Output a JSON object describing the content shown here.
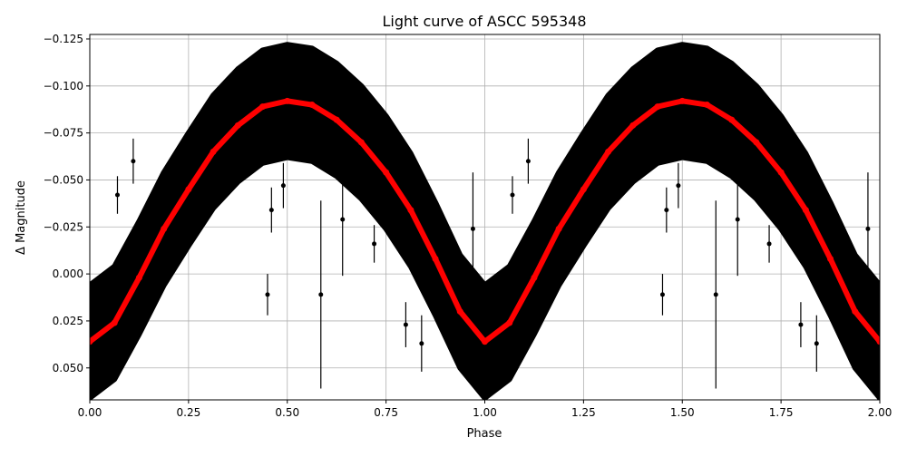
{
  "chart_data": {
    "type": "scatter",
    "title": "Light curve of ASCC 595348",
    "xlabel": "Phase",
    "ylabel": "Δ Magnitude",
    "xlim": [
      0,
      2
    ],
    "ylim": [
      0.067,
      -0.1274
    ],
    "y_inverted": true,
    "grid": true,
    "xticks": [
      0,
      0.25,
      0.5,
      0.75,
      1.0,
      1.25,
      1.5,
      1.75,
      2.0
    ],
    "xtick_labels": [
      "0.00",
      "0.25",
      "0.50",
      "0.75",
      "1.00",
      "1.25",
      "1.50",
      "1.75",
      "2.00"
    ],
    "yticks": [
      -0.125,
      -0.1,
      -0.075,
      -0.05,
      -0.025,
      0.0,
      0.025,
      0.05
    ],
    "ytick_labels": [
      "−0.125",
      "−0.100",
      "−0.075",
      "−0.050",
      "−0.025",
      "0.000",
      "0.025",
      "0.050"
    ],
    "colors": {
      "observations": "#000000",
      "binned": "#ff0000",
      "grid": "#b0b0b0"
    },
    "observation_scatter_halfwidth": 0.03,
    "series": [
      {
        "role": "binned",
        "x": [
          0,
          0.0625,
          0.125,
          0.1875,
          0.25,
          0.3125,
          0.375,
          0.4375,
          0.5,
          0.5625,
          0.625,
          0.6875,
          0.75,
          0.8125,
          0.875,
          0.9375,
          1.0,
          1.0625,
          1.125,
          1.1875,
          1.25,
          1.3125,
          1.375,
          1.4375,
          1.5,
          1.5625,
          1.625,
          1.6875,
          1.75,
          1.8125,
          1.875,
          1.9375,
          2.0
        ],
        "y": [
          0.036,
          0.026,
          0.002,
          -0.024,
          -0.045,
          -0.065,
          -0.079,
          -0.089,
          -0.092,
          -0.09,
          -0.082,
          -0.07,
          -0.054,
          -0.034,
          -0.008,
          0.02,
          0.036,
          0.026,
          0.002,
          -0.024,
          -0.045,
          -0.065,
          -0.079,
          -0.089,
          -0.092,
          -0.09,
          -0.082,
          -0.07,
          -0.054,
          -0.034,
          -0.008,
          0.02,
          0.036
        ]
      },
      {
        "role": "outliers",
        "x": [
          0.07,
          0.11,
          0.45,
          0.46,
          0.49,
          0.585,
          0.64,
          0.72,
          0.8,
          0.84,
          0.97,
          1.07,
          1.11,
          1.45,
          1.46,
          1.49,
          1.585,
          1.64,
          1.72,
          1.8,
          1.84,
          1.97
        ],
        "y": [
          -0.042,
          -0.06,
          0.011,
          -0.034,
          -0.047,
          0.011,
          -0.029,
          -0.016,
          0.027,
          0.037,
          -0.024,
          -0.042,
          -0.06,
          0.011,
          -0.034,
          -0.047,
          0.011,
          -0.029,
          -0.016,
          0.027,
          0.037,
          -0.024
        ],
        "yerr": [
          0.01,
          0.012,
          0.011,
          0.012,
          0.012,
          0.05,
          0.03,
          0.01,
          0.012,
          0.015,
          0.03,
          0.01,
          0.012,
          0.011,
          0.012,
          0.012,
          0.05,
          0.03,
          0.01,
          0.012,
          0.015,
          0.03
        ]
      }
    ]
  }
}
